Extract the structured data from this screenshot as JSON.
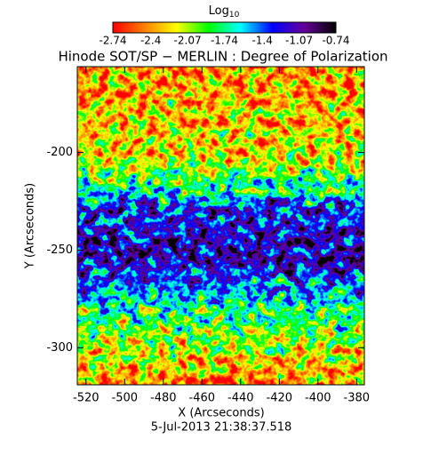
{
  "chart_data": {
    "type": "image",
    "title": "Hinode SOT/SP − MERLIN : Degree of Polarization",
    "xlabel": "X (Arcseconds)",
    "ylabel": "Y (Arcseconds)",
    "footer": "5-Jul-2013 21:38:37.518",
    "colorbar_title": "Log",
    "colorbar_title_sub": "10",
    "colorbar_lim": [
      -2.74,
      -0.74
    ],
    "colorbar_ticks": [
      -2.74,
      -2.4,
      -2.07,
      -1.74,
      -1.4,
      -1.07,
      -0.74
    ],
    "colormap": [
      "#ff0000",
      "#ff8000",
      "#ffff00",
      "#00ff00",
      "#00ffff",
      "#0000ff",
      "#660099",
      "#000000"
    ],
    "xlim": [
      -524.5,
      -376
    ],
    "xticks": [
      -520,
      -500,
      -480,
      -460,
      -440,
      -420,
      -400,
      -380
    ],
    "ylim": [
      -319,
      -156
    ],
    "yticks": [
      -300,
      -250,
      -200
    ]
  }
}
